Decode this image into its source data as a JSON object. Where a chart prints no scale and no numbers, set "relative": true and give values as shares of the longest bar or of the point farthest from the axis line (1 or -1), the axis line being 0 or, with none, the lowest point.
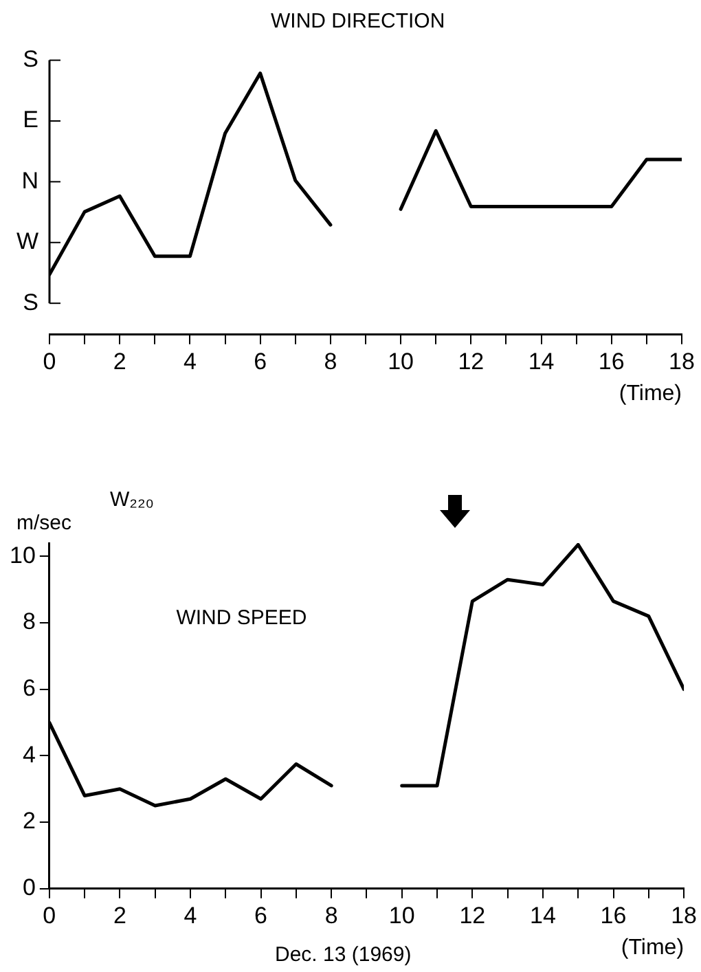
{
  "chart_data": [
    {
      "type": "line",
      "title": "WIND DIRECTION",
      "xlabel": "(Time)",
      "relative": true,
      "annotations": [
        "S",
        "E",
        "N",
        "W",
        "S"
      ],
      "x": [
        0,
        1,
        2,
        3,
        4,
        5,
        6,
        7,
        8,
        9,
        10,
        11,
        12,
        13,
        14,
        15,
        16,
        17,
        18
      ],
      "series": [
        {
          "color": "#000000",
          "values": [
            0.23,
            0.47,
            0.53,
            0.3,
            0.3,
            0.77,
            1,
            0.59,
            0.42,
            null,
            0.48,
            0.78,
            0.49,
            0.49,
            0.49,
            0.49,
            0.49,
            0.67,
            0.67
          ]
        }
      ],
      "xlim": [
        0,
        18
      ],
      "xticks": [
        0,
        {
          "value": 1,
          "label": null
        },
        2,
        {
          "value": 3,
          "label": null
        },
        4,
        {
          "value": 5,
          "label": null
        },
        6,
        {
          "value": 7,
          "label": null
        },
        8,
        {
          "value": 9,
          "label": null
        },
        10,
        {
          "value": 11,
          "label": null
        },
        12,
        {
          "value": 13,
          "label": null
        },
        14,
        {
          "value": 15,
          "label": null
        },
        16,
        {
          "value": 17,
          "label": null
        },
        18
      ],
      "grid": false,
      "legend": false,
      "marker": "none",
      "line_style": "solid"
    },
    {
      "type": "line",
      "title": "WIND SPEED",
      "xlabel": "(Time)",
      "ylabel": "m/sec",
      "annotations": [
        "W₂₂₀",
        "Dec. 13 (1969)"
      ],
      "x": [
        0,
        1,
        2,
        3,
        4,
        5,
        6,
        7,
        8,
        9,
        10,
        11,
        12,
        13,
        14,
        15,
        16,
        17,
        18
      ],
      "series": [
        {
          "color": "#000000",
          "values": [
            5.0,
            2.8,
            3.0,
            2.5,
            2.7,
            3.3,
            2.7,
            3.75,
            3.1,
            null,
            3.1,
            3.1,
            8.65,
            9.3,
            9.15,
            10.35,
            8.65,
            8.2,
            6.0
          ]
        }
      ],
      "xlim": [
        0,
        18
      ],
      "xticks": [
        0,
        {
          "value": 1,
          "label": null
        },
        2,
        {
          "value": 3,
          "label": null
        },
        4,
        {
          "value": 5,
          "label": null
        },
        6,
        {
          "value": 7,
          "label": null
        },
        8,
        {
          "value": 9,
          "label": null
        },
        10,
        {
          "value": 11,
          "label": null
        },
        12,
        {
          "value": 13,
          "label": null
        },
        14,
        {
          "value": 15,
          "label": null
        },
        16,
        {
          "value": 17,
          "label": null
        },
        18
      ],
      "ylim": [
        0,
        10.4
      ],
      "yticks": [
        0,
        2,
        4,
        6,
        8,
        10
      ],
      "grid": false,
      "legend": false,
      "marker": "none",
      "line_style": "solid"
    }
  ]
}
